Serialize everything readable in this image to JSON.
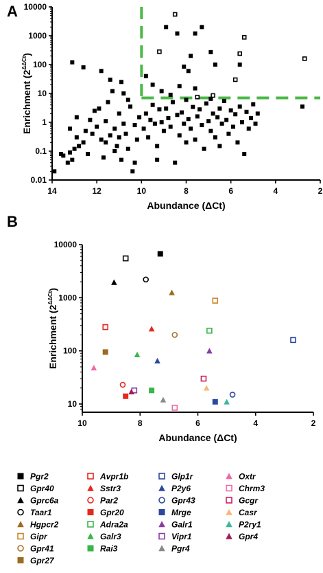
{
  "chart_data": [
    {
      "panel": "A",
      "type": "scatter",
      "xlabel": "Abundance (ΔCt)",
      "ylabel": "Enrichment (2^ΔΔCt)",
      "ylabel_base": "Enrichment (2",
      "ylabel_exp": "ΔΔCt",
      "ylabel_close": ")",
      "xlim": [
        14,
        2
      ],
      "x_reversed": true,
      "ylim": [
        0.01,
        10000
      ],
      "yscale": "log",
      "x_ticks": [
        "14",
        "12",
        "10",
        "8",
        "6",
        "4",
        "2"
      ],
      "y_ticks": [
        "10000",
        "1000",
        "100",
        "10",
        "1",
        "0.1",
        "0.01"
      ],
      "thresholds": {
        "vertical_x": 10,
        "horizontal_y": 7,
        "color": "#4cb848"
      },
      "series": [
        {
          "marker": "filled-square",
          "points": [
            [
              13.9,
              0.02
            ],
            [
              13.6,
              0.08
            ],
            [
              13.5,
              0.07
            ],
            [
              13.3,
              0.04
            ],
            [
              13.2,
              0.09
            ],
            [
              13.1,
              0.05
            ],
            [
              13.0,
              0.12
            ],
            [
              13.2,
              0.6
            ],
            [
              12.9,
              0.3
            ],
            [
              12.8,
              0.15
            ],
            [
              12.6,
              0.2
            ],
            [
              12.5,
              0.5
            ],
            [
              12.4,
              0.08
            ],
            [
              12.3,
              1.2
            ],
            [
              12.2,
              0.4
            ],
            [
              12.1,
              2.5
            ],
            [
              12.0,
              0.7
            ],
            [
              12.9,
              1.5
            ],
            [
              13.1,
              120
            ],
            [
              12.6,
              80
            ],
            [
              11.9,
              3.0
            ],
            [
              11.8,
              0.25
            ],
            [
              11.7,
              0.06
            ],
            [
              11.6,
              1.1
            ],
            [
              11.5,
              5.0
            ],
            [
              11.4,
              0.35
            ],
            [
              11.3,
              12
            ],
            [
              11.2,
              0.6
            ],
            [
              11.1,
              0.15
            ],
            [
              11.0,
              2.0
            ],
            [
              10.9,
              25
            ],
            [
              10.8,
              0.9
            ],
            [
              10.7,
              0.4
            ],
            [
              10.6,
              0.12
            ],
            [
              10.5,
              3.5
            ],
            [
              10.4,
              0.02
            ],
            [
              10.3,
              0.8
            ],
            [
              10.2,
              0.25
            ],
            [
              10.1,
              1.5
            ],
            [
              11.8,
              60
            ],
            [
              11.4,
              30
            ],
            [
              10.8,
              10
            ],
            [
              10.6,
              6
            ],
            [
              11.2,
              0.1
            ],
            [
              10.9,
              0.05
            ],
            [
              10.3,
              0.04
            ],
            [
              11.6,
              0.2
            ],
            [
              11.0,
              0.3
            ],
            [
              9.9,
              0.6
            ],
            [
              9.8,
              2.0
            ],
            [
              9.7,
              0.3
            ],
            [
              9.6,
              1.2
            ],
            [
              9.5,
              4.0
            ],
            [
              9.4,
              0.9
            ],
            [
              9.3,
              0.15
            ],
            [
              9.2,
              2.8
            ],
            [
              9.1,
              1.0
            ],
            [
              9.0,
              0.5
            ],
            [
              8.9,
              3.0
            ],
            [
              8.8,
              1.4
            ],
            [
              8.7,
              0.7
            ],
            [
              8.6,
              5.0
            ],
            [
              8.5,
              0.04
            ],
            [
              8.4,
              1.8
            ],
            [
              8.3,
              0.35
            ],
            [
              8.2,
              2.2
            ],
            [
              8.1,
              0.9
            ],
            [
              8.0,
              6.0
            ],
            [
              7.9,
              1.3
            ],
            [
              7.8,
              0.6
            ],
            [
              7.7,
              3.4
            ],
            [
              7.6,
              0.25
            ],
            [
              7.5,
              1.6
            ],
            [
              7.4,
              2.8
            ],
            [
              7.3,
              0.8
            ],
            [
              7.2,
              0.12
            ],
            [
              7.1,
              4.5
            ],
            [
              7.0,
              1.1
            ],
            [
              6.9,
              0.5
            ],
            [
              6.8,
              2.0
            ],
            [
              6.7,
              0.3
            ],
            [
              6.6,
              1.5
            ],
            [
              6.5,
              3.0
            ],
            [
              6.4,
              0.9
            ],
            [
              6.3,
              5.5
            ],
            [
              6.2,
              1.2
            ],
            [
              6.1,
              0.4
            ],
            [
              6.0,
              2.6
            ],
            [
              5.9,
              0.7
            ],
            [
              5.8,
              1.9
            ],
            [
              5.7,
              0.2
            ],
            [
              5.6,
              3.5
            ],
            [
              5.5,
              1.0
            ],
            [
              5.4,
              0.08
            ],
            [
              5.3,
              2.3
            ],
            [
              5.2,
              0.6
            ],
            [
              5.1,
              1.4
            ],
            [
              5.0,
              4.2
            ],
            [
              4.9,
              0.9
            ],
            [
              4.8,
              2.0
            ],
            [
              2.8,
              3.5
            ],
            [
              9.5,
              20
            ],
            [
              9.1,
              12
            ],
            [
              8.7,
              9
            ],
            [
              6.9,
              6.5
            ],
            [
              7.6,
              15
            ],
            [
              8.3,
              18
            ],
            [
              9.8,
              40
            ],
            [
              9.3,
              0.05
            ],
            [
              8.0,
              0.2
            ],
            [
              6.5,
              0.15
            ],
            [
              7.3,
              2000
            ],
            [
              7.8,
              200
            ],
            [
              8.9,
              2000
            ],
            [
              8.4,
              1200
            ],
            [
              7.6,
              1200
            ],
            [
              6.9,
              270
            ],
            [
              6.7,
              100
            ],
            [
              5.6,
              100
            ],
            [
              8.1,
              85
            ],
            [
              7.9,
              60
            ]
          ]
        },
        {
          "marker": "open-square",
          "points": [
            [
              8.5,
              5500
            ],
            [
              9.2,
              280
            ],
            [
              5.4,
              880
            ],
            [
              5.6,
              240
            ],
            [
              5.8,
              30
            ],
            [
              2.7,
              160
            ],
            [
              6.8,
              8.5
            ],
            [
              7.5,
              7.5
            ]
          ]
        }
      ]
    },
    {
      "panel": "B",
      "type": "scatter",
      "xlabel": "Abundance (ΔCt)",
      "ylabel": "Enrichment (2^ΔΔCt)",
      "ylabel_base": "Enrichment (2",
      "ylabel_exp": "ΔΔCt",
      "ylabel_close": ")",
      "xlim": [
        10,
        2
      ],
      "x_reversed": true,
      "ylim": [
        7,
        10000
      ],
      "yscale": "log",
      "x_ticks": [
        "10",
        "8",
        "6",
        "4",
        "2"
      ],
      "y_ticks": [
        "10000",
        "1000",
        "100",
        "10"
      ],
      "series": [
        {
          "name": "Pgr2",
          "marker": "square",
          "fill": "filled",
          "color": "#000000",
          "x": 7.3,
          "y": 6700
        },
        {
          "name": "Gpr40",
          "marker": "square",
          "fill": "open",
          "color": "#000000",
          "x": 8.5,
          "y": 5500
        },
        {
          "name": "Gprc6a",
          "marker": "triangle",
          "fill": "filled",
          "color": "#000000",
          "x": 8.9,
          "y": 1950
        },
        {
          "name": "Taar1",
          "marker": "circle",
          "fill": "open",
          "color": "#000000",
          "x": 7.8,
          "y": 2200
        },
        {
          "name": "Hgpcr2",
          "marker": "triangle",
          "fill": "filled",
          "color": "#9c6b1f",
          "x": 6.9,
          "y": 1250
        },
        {
          "name": "Gipr",
          "marker": "square",
          "fill": "open",
          "color": "#c8862a",
          "x": 5.4,
          "y": 880
        },
        {
          "name": "Gpr41",
          "marker": "circle",
          "fill": "open",
          "color": "#a6752a",
          "x": 6.8,
          "y": 200
        },
        {
          "name": "Gpr27",
          "marker": "square",
          "fill": "filled",
          "color": "#9c6b1f",
          "x": 9.2,
          "y": 95
        },
        {
          "name": "Avpr1b",
          "marker": "square",
          "fill": "open",
          "color": "#e5281f",
          "x": 9.2,
          "y": 280
        },
        {
          "name": "Sstr3",
          "marker": "triangle",
          "fill": "filled",
          "color": "#e5281f",
          "x": 7.6,
          "y": 260
        },
        {
          "name": "Par2",
          "marker": "circle",
          "fill": "open",
          "color": "#e5281f",
          "x": 8.6,
          "y": 23
        },
        {
          "name": "Gpr20",
          "marker": "square",
          "fill": "filled",
          "color": "#e5281f",
          "x": 8.5,
          "y": 14
        },
        {
          "name": "Adra2a",
          "marker": "square",
          "fill": "open",
          "color": "#3ab54a",
          "x": 5.6,
          "y": 240
        },
        {
          "name": "Galr3",
          "marker": "triangle",
          "fill": "filled",
          "color": "#3ab54a",
          "x": 8.1,
          "y": 85
        },
        {
          "name": "Rai3",
          "marker": "square",
          "fill": "filled",
          "color": "#3ab54a",
          "x": 7.6,
          "y": 18
        },
        {
          "name": "Glp1r",
          "marker": "square",
          "fill": "open",
          "color": "#2b48a0",
          "x": 2.7,
          "y": 160
        },
        {
          "name": "P2y6",
          "marker": "triangle",
          "fill": "filled",
          "color": "#2b48a0",
          "x": 7.4,
          "y": 65
        },
        {
          "name": "Gpr43",
          "marker": "circle",
          "fill": "open",
          "color": "#2b48a0",
          "x": 4.8,
          "y": 15
        },
        {
          "name": "Mrge",
          "marker": "square",
          "fill": "filled",
          "color": "#2b48a0",
          "x": 5.4,
          "y": 11
        },
        {
          "name": "Galr1",
          "marker": "triangle",
          "fill": "filled",
          "color": "#8b3ca3",
          "x": 5.6,
          "y": 100
        },
        {
          "name": "Vipr1",
          "marker": "square",
          "fill": "open",
          "color": "#8b3ca3",
          "x": 8.2,
          "y": 18
        },
        {
          "name": "Pgr4",
          "marker": "triangle",
          "fill": "filled",
          "color": "#8a8a8a",
          "x": 7.2,
          "y": 12
        },
        {
          "name": "Oxtr",
          "marker": "triangle",
          "fill": "filled",
          "color": "#ee6aa7",
          "x": 9.6,
          "y": 48
        },
        {
          "name": "Chrm3",
          "marker": "square",
          "fill": "open",
          "color": "#ee6aa7",
          "x": 6.8,
          "y": 8.5
        },
        {
          "name": "Gcgr",
          "marker": "square",
          "fill": "open",
          "color": "#cc1f5c",
          "x": 5.8,
          "y": 30
        },
        {
          "name": "Casr",
          "marker": "triangle",
          "fill": "filled",
          "color": "#f5b97a",
          "x": 5.7,
          "y": 20
        },
        {
          "name": "P2ry1",
          "marker": "triangle",
          "fill": "filled",
          "color": "#3fb5a0",
          "x": 5.0,
          "y": 11
        },
        {
          "name": "Gpr4",
          "marker": "triangle",
          "fill": "filled",
          "color": "#a3195b",
          "x": 8.3,
          "y": 17
        }
      ]
    }
  ],
  "legend": {
    "columns": 4,
    "order": [
      [
        "Pgr2",
        "Gpr40",
        "Gprc6a",
        "Taar1",
        "Hgpcr2",
        "Gipr",
        "Gpr41",
        "Gpr27"
      ],
      [
        "Avpr1b",
        "Sstr3",
        "Par2",
        "Gpr20",
        "Adra2a",
        "Galr3",
        "Rai3"
      ],
      [
        "Glp1r",
        "P2y6",
        "Gpr43",
        "Mrge",
        "Galr1",
        "Vipr1",
        "Pgr4"
      ],
      [
        "Oxtr",
        "Chrm3",
        "Gcgr",
        "Casr",
        "P2ry1",
        "Gpr4"
      ]
    ]
  }
}
